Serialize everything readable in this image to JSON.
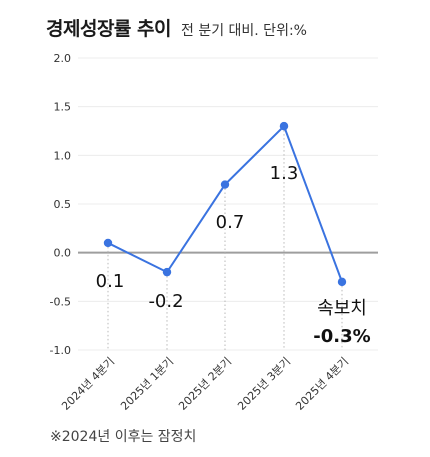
{
  "header": {
    "title": "경제성장률 추이",
    "subtitle": "전 분기 대비. 단위:%"
  },
  "footnote": "※2024년 이후는 잠정치",
  "colors": {
    "line": "#3a73e0",
    "marker": "#3a73e0",
    "zero_line": "#9e9e9e",
    "grid": "#ececec",
    "guide": "#b8b8b8"
  },
  "chart_data": {
    "type": "line",
    "title": "경제성장률 추이",
    "subtitle": "전 분기 대비. 단위:%",
    "categories": [
      "2024년 4분기",
      "2025년 1분기",
      "2025년 2분기",
      "2025년 3분기",
      "2025년 4분기"
    ],
    "values": [
      0.1,
      -0.2,
      0.7,
      1.3,
      -0.3
    ],
    "data_labels": [
      "0.1",
      "-0.2",
      "0.7",
      "1.3",
      "-0.3%"
    ],
    "highlight_annotation": "속보치",
    "ylim": [
      -1.0,
      2.0
    ],
    "yticks": [
      "2.0",
      "1.5",
      "1.0",
      "0.5",
      "0.0",
      "-0.5",
      "-1.0"
    ],
    "grid": true,
    "xlabel": "",
    "ylabel": ""
  }
}
